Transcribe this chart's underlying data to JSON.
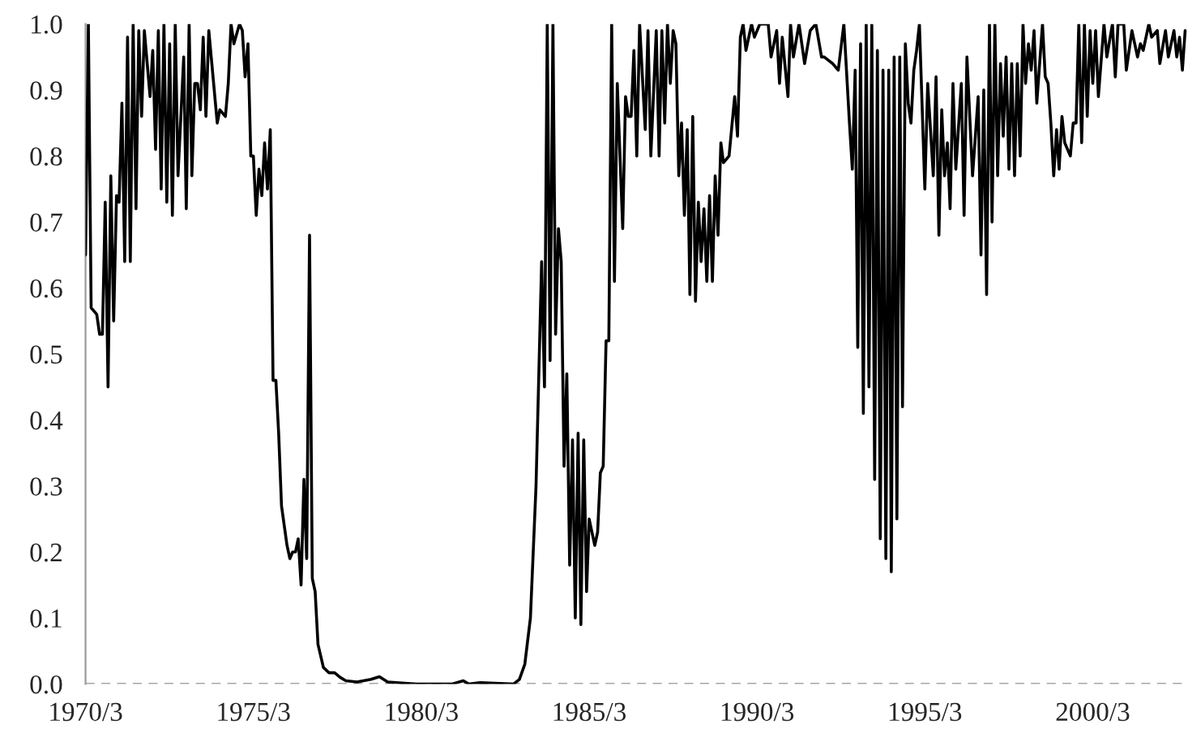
{
  "chart_data": {
    "type": "line",
    "x": [
      "1970-03",
      "1970-04",
      "1970-05",
      "1970-07",
      "1970-08",
      "1970-09",
      "1970-10",
      "1970-11",
      "1970-12",
      "1971-01",
      "1971-02",
      "1971-03",
      "1971-04",
      "1971-05",
      "1971-06",
      "1971-07",
      "1971-08",
      "1971-09",
      "1971-10",
      "1971-11",
      "1971-12",
      "1972-02",
      "1972-03",
      "1972-04",
      "1972-05",
      "1972-06",
      "1972-07",
      "1972-08",
      "1972-09",
      "1972-10",
      "1972-11",
      "1972-12",
      "1973-02",
      "1973-03",
      "1973-04",
      "1973-05",
      "1973-06",
      "1973-07",
      "1973-08",
      "1973-09",
      "1973-10",
      "1973-11",
      "1974-02",
      "1974-03",
      "1974-05",
      "1974-06",
      "1974-07",
      "1974-08",
      "1974-10",
      "1974-11",
      "1974-12",
      "1975-01",
      "1975-02",
      "1975-03",
      "1975-04",
      "1975-05",
      "1975-06",
      "1975-07",
      "1975-08",
      "1975-09",
      "1975-10",
      "1975-11",
      "1975-12",
      "1976-01",
      "1976-03",
      "1976-04",
      "1976-05",
      "1976-06",
      "1976-07",
      "1976-08",
      "1976-09",
      "1976-10",
      "1976-11",
      "1976-12",
      "1977-01",
      "1977-02",
      "1977-04",
      "1977-06",
      "1977-08",
      "1977-10",
      "1977-12",
      "1978-04",
      "1978-09",
      "1978-12",
      "1979-03",
      "1980-01",
      "1981-02",
      "1981-06",
      "1981-08",
      "1981-12",
      "1982-12",
      "1983-02",
      "1983-04",
      "1983-06",
      "1983-08",
      "1983-10",
      "1983-11",
      "1983-12",
      "1984-01",
      "1984-02",
      "1984-03",
      "1984-04",
      "1984-05",
      "1984-06",
      "1984-07",
      "1984-08",
      "1984-09",
      "1984-10",
      "1984-11",
      "1984-12",
      "1985-01",
      "1985-02",
      "1985-03",
      "1985-05",
      "1985-06",
      "1985-07",
      "1985-08",
      "1985-09",
      "1985-10",
      "1985-11",
      "1985-12",
      "1986-01",
      "1986-03",
      "1986-04",
      "1986-05",
      "1986-06",
      "1986-07",
      "1986-08",
      "1986-09",
      "1986-11",
      "1986-12",
      "1987-01",
      "1987-03",
      "1987-04",
      "1987-05",
      "1987-06",
      "1987-07",
      "1987-08",
      "1987-09",
      "1987-10",
      "1987-11",
      "1987-12",
      "1988-01",
      "1988-02",
      "1988-03",
      "1988-04",
      "1988-05",
      "1988-06",
      "1988-07",
      "1988-08",
      "1988-09",
      "1988-10",
      "1988-11",
      "1988-12",
      "1989-01",
      "1989-02",
      "1989-03",
      "1989-05",
      "1989-07",
      "1989-08",
      "1989-09",
      "1989-10",
      "1989-11",
      "1990-01",
      "1990-02",
      "1990-04",
      "1990-07",
      "1990-08",
      "1990-10",
      "1990-11",
      "1990-12",
      "1991-02",
      "1991-03",
      "1991-04",
      "1991-06",
      "1991-08",
      "1991-10",
      "1991-12",
      "1992-02",
      "1992-03",
      "1992-06",
      "1992-08",
      "1992-10",
      "1992-12",
      "1993-01",
      "1993-02",
      "1993-03",
      "1993-04",
      "1993-05",
      "1993-06",
      "1993-07",
      "1993-08",
      "1993-09",
      "1993-10",
      "1993-11",
      "1993-12",
      "1994-01",
      "1994-02",
      "1994-03",
      "1994-04",
      "1994-05",
      "1994-06",
      "1994-07",
      "1994-08",
      "1994-09",
      "1994-10",
      "1994-11",
      "1994-12",
      "1995-01",
      "1995-03",
      "1995-04",
      "1995-06",
      "1995-07",
      "1995-08",
      "1995-09",
      "1995-10",
      "1995-11",
      "1995-12",
      "1996-01",
      "1996-02",
      "1996-04",
      "1996-05",
      "1996-06",
      "1996-08",
      "1996-10",
      "1996-11",
      "1996-12",
      "1997-01",
      "1997-02",
      "1997-03",
      "1997-04",
      "1997-05",
      "1997-06",
      "1997-07",
      "1997-08",
      "1997-09",
      "1997-10",
      "1997-11",
      "1997-12",
      "1998-01",
      "1998-02",
      "1998-03",
      "1998-04",
      "1998-05",
      "1998-06",
      "1998-07",
      "1998-09",
      "1998-10",
      "1998-11",
      "1998-12",
      "1999-01",
      "1999-02",
      "1999-03",
      "1999-04",
      "1999-05",
      "1999-07",
      "1999-08",
      "1999-09",
      "1999-10",
      "1999-11",
      "1999-12",
      "2000-01",
      "2000-02",
      "2000-03",
      "2000-04",
      "2000-05",
      "2000-07",
      "2000-08",
      "2000-10",
      "2000-11",
      "2000-12",
      "2001-02",
      "2001-03",
      "2001-05",
      "2001-07",
      "2001-08",
      "2001-09",
      "2001-11",
      "2001-12",
      "2002-02",
      "2002-03",
      "2002-05",
      "2002-06",
      "2002-08",
      "2002-09",
      "2002-10",
      "2002-11",
      "2002-12"
    ],
    "series": [
      {
        "color": "#000000",
        "values": [
          0.65,
          1.0,
          0.57,
          0.56,
          0.53,
          0.53,
          0.73,
          0.45,
          0.77,
          0.55,
          0.74,
          0.73,
          0.88,
          0.64,
          0.98,
          0.64,
          1.0,
          0.72,
          0.99,
          0.86,
          0.99,
          0.89,
          0.96,
          0.81,
          0.99,
          0.75,
          1.0,
          0.73,
          0.97,
          0.71,
          1.0,
          0.77,
          0.95,
          0.72,
          1.0,
          0.77,
          0.91,
          0.91,
          0.87,
          0.98,
          0.86,
          0.99,
          0.85,
          0.87,
          0.86,
          0.91,
          1.0,
          0.97,
          1.0,
          0.99,
          0.92,
          0.97,
          0.8,
          0.8,
          0.71,
          0.78,
          0.74,
          0.82,
          0.75,
          0.84,
          0.46,
          0.46,
          0.38,
          0.27,
          0.21,
          0.19,
          0.2,
          0.2,
          0.22,
          0.15,
          0.31,
          0.19,
          0.68,
          0.16,
          0.14,
          0.06,
          0.025,
          0.017,
          0.017,
          0.01,
          0.005,
          0.003,
          0.007,
          0.011,
          0.003,
          0.0,
          0.0,
          0.005,
          0.0,
          0.002,
          0.0,
          0.007,
          0.03,
          0.1,
          0.3,
          0.64,
          0.45,
          1.0,
          0.49,
          1.0,
          0.53,
          0.69,
          0.64,
          0.33,
          0.47,
          0.18,
          0.37,
          0.1,
          0.38,
          0.09,
          0.37,
          0.14,
          0.25,
          0.21,
          0.23,
          0.32,
          0.33,
          0.52,
          0.52,
          1.0,
          0.61,
          0.91,
          0.69,
          0.89,
          0.86,
          0.86,
          0.96,
          0.8,
          1.0,
          0.84,
          0.99,
          0.8,
          0.99,
          0.8,
          0.99,
          0.85,
          1.0,
          0.91,
          0.99,
          0.97,
          0.77,
          0.85,
          0.71,
          0.84,
          0.59,
          0.86,
          0.58,
          0.73,
          0.64,
          0.72,
          0.61,
          0.74,
          0.61,
          0.77,
          0.68,
          0.82,
          0.79,
          0.8,
          0.89,
          0.83,
          0.98,
          1.0,
          0.96,
          1.0,
          0.98,
          1.0,
          1.0,
          0.95,
          0.99,
          0.91,
          0.98,
          0.89,
          1.0,
          0.95,
          1.0,
          0.94,
          0.99,
          1.0,
          0.95,
          0.95,
          0.94,
          0.93,
          1.0,
          0.85,
          0.78,
          0.93,
          0.51,
          0.97,
          0.41,
          1.0,
          0.45,
          1.0,
          0.31,
          0.96,
          0.22,
          0.93,
          0.19,
          0.93,
          0.17,
          0.95,
          0.25,
          0.95,
          0.42,
          0.97,
          0.88,
          0.85,
          0.93,
          0.96,
          1.0,
          0.75,
          0.91,
          0.77,
          0.92,
          0.68,
          0.87,
          0.77,
          0.82,
          0.72,
          0.91,
          0.78,
          0.91,
          0.71,
          0.95,
          0.77,
          0.89,
          0.65,
          0.9,
          0.59,
          1.0,
          0.7,
          1.0,
          0.77,
          0.94,
          0.83,
          0.95,
          0.78,
          0.94,
          0.77,
          0.94,
          0.8,
          1.0,
          0.91,
          0.97,
          0.93,
          0.99,
          0.88,
          1.0,
          0.92,
          0.91,
          0.85,
          0.77,
          0.84,
          0.78,
          0.86,
          0.82,
          0.8,
          0.85,
          0.85,
          1.0,
          0.82,
          1.0,
          0.86,
          0.99,
          0.91,
          0.99,
          0.89,
          1.0,
          0.95,
          1.0,
          0.92,
          1.0,
          1.0,
          0.93,
          0.99,
          0.95,
          0.97,
          0.96,
          1.0,
          0.98,
          0.99,
          0.94,
          0.99,
          0.95,
          0.99,
          0.95,
          0.98,
          0.93,
          0.99
        ]
      }
    ],
    "xlim": [
      "1970-03",
      "2003-01"
    ],
    "xticks": [
      {
        "value": "1970-03",
        "label": "1970/3"
      },
      {
        "value": "1975-03",
        "label": "1975/3"
      },
      {
        "value": "1980-03",
        "label": "1980/3"
      },
      {
        "value": "1985-03",
        "label": "1985/3"
      },
      {
        "value": "1990-03",
        "label": "1990/3"
      },
      {
        "value": "1995-03",
        "label": "1995/3"
      },
      {
        "value": "2000-03",
        "label": "2000/3"
      }
    ],
    "ylim": [
      0,
      1
    ],
    "yticks": [
      {
        "value": 0,
        "label": "0.0"
      },
      0.1,
      0.2,
      0.3,
      0.4,
      0.5,
      0.6,
      0.7,
      0.8,
      0.9,
      {
        "value": 1,
        "label": "1.0"
      }
    ],
    "ref_lines": [
      {
        "axis": "y",
        "value": 0,
        "color": "#a6a6a6",
        "line_style": "dashed"
      }
    ],
    "grid": false,
    "marker": "none",
    "line_style": "solid"
  }
}
